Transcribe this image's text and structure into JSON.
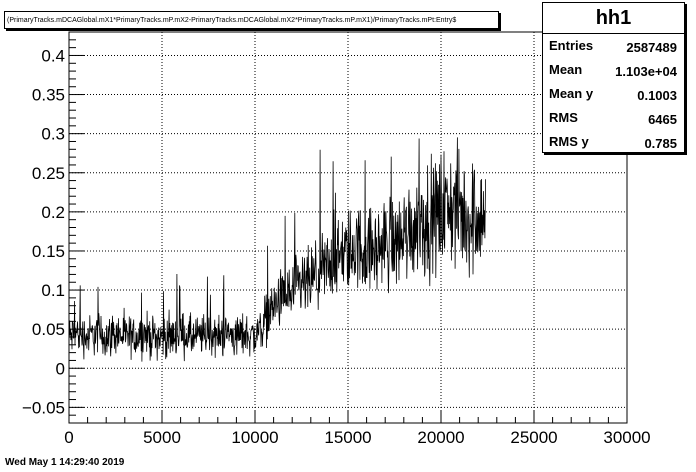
{
  "title": "(PrimaryTracks.mDCAGlobal.mX1*PrimaryTracks.mP.mX2-PrimaryTracks.mDCAGlobal.mX2*PrimaryTracks.mP.mX1)/PrimaryTracks.mPt:Entry$",
  "stats": {
    "name": "hh1",
    "rows": [
      {
        "label": "Entries",
        "value": "2587489"
      },
      {
        "label": "Mean",
        "value": "1.103e+04"
      },
      {
        "label": "Mean y",
        "value": "0.1003"
      },
      {
        "label": "RMS",
        "value": "6465"
      },
      {
        "label": "RMS y",
        "value": "0.785"
      }
    ]
  },
  "footer": "Wed May  1 14:29:40 2019",
  "colors": {
    "line": "#000000",
    "grid": "#000000",
    "background": "#ffffff"
  },
  "chart_data": {
    "type": "line",
    "title": "",
    "xlabel": "",
    "ylabel": "",
    "xlim": [
      0,
      30000
    ],
    "ylim": [
      -0.07,
      0.43
    ],
    "xticks": [
      "0",
      "5000",
      "10000",
      "15000",
      "20000",
      "25000",
      "30000"
    ],
    "xtick_values": [
      0,
      5000,
      10000,
      15000,
      20000,
      25000,
      30000
    ],
    "yticks": [
      "−0.05",
      "0",
      "0.05",
      "0.1",
      "0.15",
      "0.2",
      "0.25",
      "0.3",
      "0.35",
      "0.4"
    ],
    "ytick_values": [
      -0.05,
      0,
      0.05,
      0.1,
      0.15,
      0.2,
      0.25,
      0.3,
      0.35,
      0.4
    ],
    "grid": true,
    "series": [
      {
        "x": [
          0,
          500,
          1000,
          1500,
          2000,
          2500,
          3000,
          3500,
          4000,
          4500,
          5000,
          5500,
          6000,
          6500,
          7000,
          7500,
          8000,
          8500,
          9000,
          9500,
          10000,
          10500,
          11000,
          11500,
          12000,
          12500,
          13000,
          13500,
          14000,
          14500,
          15000,
          15500,
          16000,
          16500,
          17000,
          17500,
          18000,
          18500,
          19000,
          19500,
          20000,
          20500,
          21000,
          21500,
          22000,
          22400
        ],
        "y": [
          0.04,
          0.045,
          0.04,
          0.045,
          0.04,
          0.045,
          0.04,
          0.04,
          0.045,
          0.04,
          0.04,
          0.04,
          0.045,
          0.04,
          0.04,
          0.045,
          0.04,
          0.045,
          0.04,
          0.045,
          0.04,
          0.06,
          0.08,
          0.09,
          0.095,
          0.105,
          0.11,
          0.12,
          0.13,
          0.14,
          0.15,
          0.155,
          0.15,
          0.15,
          0.16,
          0.16,
          0.17,
          0.18,
          0.19,
          0.19,
          0.2,
          0.21,
          0.2,
          0.19,
          0.2,
          0.19
        ],
        "spread": [
          0.025,
          0.025,
          0.025,
          0.025,
          0.025,
          0.025,
          0.025,
          0.025,
          0.025,
          0.025,
          0.025,
          0.025,
          0.025,
          0.025,
          0.025,
          0.025,
          0.025,
          0.025,
          0.025,
          0.025,
          0.025,
          0.03,
          0.03,
          0.035,
          0.04,
          0.04,
          0.04,
          0.045,
          0.045,
          0.045,
          0.05,
          0.05,
          0.05,
          0.05,
          0.055,
          0.055,
          0.06,
          0.06,
          0.065,
          0.065,
          0.07,
          0.07,
          0.07,
          0.07,
          0.07,
          0.065
        ]
      }
    ]
  }
}
